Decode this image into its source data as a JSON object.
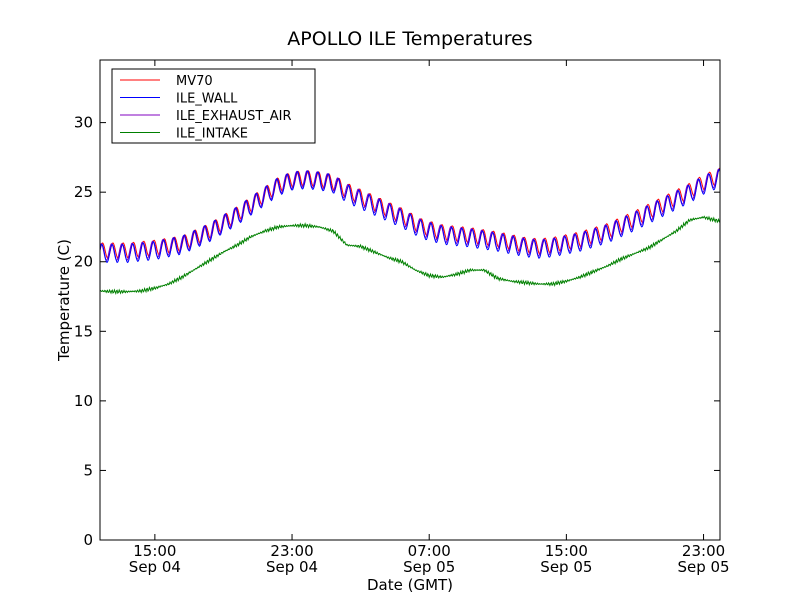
{
  "chart_data": {
    "type": "line",
    "title": "APOLLO ILE Temperatures",
    "xlabel": "Date (GMT)",
    "ylabel": "Temperature (C)",
    "xlim": [
      0,
      45.2
    ],
    "ylim": [
      0,
      34.5
    ],
    "yticks": [
      0,
      5,
      10,
      15,
      20,
      25,
      30
    ],
    "xticks": [
      {
        "pos": 4,
        "time": "15:00",
        "date": "Sep 04"
      },
      {
        "pos": 14,
        "time": "23:00",
        "date": "Sep 04"
      },
      {
        "pos": 24,
        "time": "07:00",
        "date": "Sep 05"
      },
      {
        "pos": 34,
        "time": "15:00",
        "date": "Sep 05"
      },
      {
        "pos": 44,
        "time": "23:00",
        "date": "Sep 05"
      }
    ],
    "grid": false,
    "legend_position": "top-left",
    "x_unit": "hours since Sep 04 11:00 GMT",
    "series": [
      {
        "name": "MV70",
        "color": "#ff0000",
        "oscillation": 0.55,
        "x": [
          0,
          2,
          4,
          6,
          8,
          10,
          12,
          13,
          14,
          15,
          16,
          17,
          18,
          20,
          22,
          23.5,
          25,
          27,
          29,
          31,
          32,
          33,
          35,
          37,
          39,
          41,
          43,
          44,
          45.2
        ],
        "values": [
          20.8,
          20.8,
          21.0,
          21.3,
          22.2,
          23.4,
          24.8,
          25.5,
          25.9,
          26.0,
          25.9,
          25.7,
          25.1,
          24.2,
          23.3,
          22.5,
          22.1,
          21.9,
          21.6,
          21.2,
          21.1,
          21.2,
          21.6,
          22.2,
          23.1,
          24.1,
          25.1,
          25.7,
          26.2
        ]
      },
      {
        "name": "ILE_WALL",
        "color": "#0000ff",
        "oscillation": 0.65,
        "x": [
          0,
          2,
          4,
          6,
          8,
          10,
          12,
          13,
          14,
          15,
          16,
          17,
          18,
          20,
          22,
          23.5,
          25,
          27,
          29,
          31,
          32,
          33,
          35,
          37,
          39,
          41,
          43,
          44,
          45.2
        ],
        "values": [
          20.6,
          20.6,
          20.8,
          21.2,
          22.1,
          23.3,
          24.7,
          25.4,
          25.8,
          25.9,
          25.8,
          25.6,
          24.9,
          24.0,
          23.1,
          22.3,
          21.9,
          21.7,
          21.4,
          21.0,
          20.9,
          21.0,
          21.4,
          22.0,
          22.9,
          23.9,
          24.9,
          25.5,
          26.0
        ]
      },
      {
        "name": "ILE_EXHAUST_AIR",
        "color": "#8000c0",
        "oscillation": 0.6,
        "x": [
          0,
          2,
          4,
          6,
          8,
          10,
          12,
          13,
          14,
          15,
          16,
          17,
          18,
          20,
          22,
          23.5,
          25,
          27,
          29,
          31,
          32,
          33,
          35,
          37,
          39,
          41,
          43,
          44,
          45.2
        ],
        "values": [
          20.7,
          20.7,
          20.9,
          21.25,
          22.15,
          23.35,
          24.75,
          25.45,
          25.85,
          25.95,
          25.85,
          25.65,
          25.0,
          24.1,
          23.2,
          22.4,
          22.0,
          21.8,
          21.5,
          21.1,
          21.0,
          21.1,
          21.5,
          22.1,
          23.0,
          24.0,
          25.0,
          25.6,
          26.1
        ]
      },
      {
        "name": "ILE_INTAKE",
        "color": "#008000",
        "oscillation": 0,
        "x": [
          0,
          1,
          2,
          3,
          4,
          5,
          6,
          7,
          8,
          9,
          10,
          11,
          12,
          13,
          14,
          15,
          16,
          17,
          17.5,
          18,
          19,
          20,
          21,
          22,
          23,
          24,
          25,
          26,
          27,
          28,
          29,
          30,
          31,
          32,
          33,
          34,
          35,
          36,
          37,
          38,
          39,
          40,
          41,
          42,
          43,
          44,
          45.2
        ],
        "values": [
          17.9,
          17.85,
          17.85,
          17.9,
          18.1,
          18.4,
          18.9,
          19.5,
          20.1,
          20.7,
          21.2,
          21.8,
          22.2,
          22.5,
          22.6,
          22.6,
          22.5,
          22.2,
          21.7,
          21.2,
          21.1,
          20.7,
          20.3,
          20.0,
          19.4,
          19.0,
          18.9,
          19.1,
          19.4,
          19.4,
          18.8,
          18.6,
          18.5,
          18.4,
          18.4,
          18.6,
          18.9,
          19.3,
          19.7,
          20.2,
          20.6,
          21.0,
          21.6,
          22.2,
          23.0,
          23.2,
          22.9
        ]
      }
    ]
  }
}
